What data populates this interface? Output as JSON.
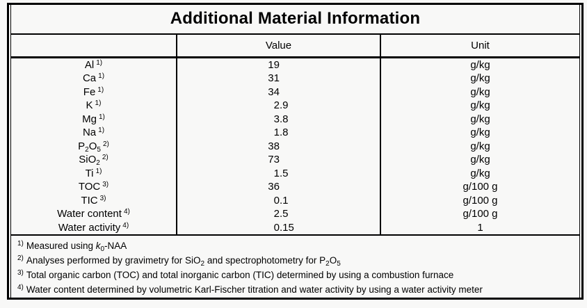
{
  "title": "Additional Material Information",
  "table": {
    "columns": [
      "",
      "Value",
      "Unit"
    ],
    "rows": [
      {
        "label_parts": [
          {
            "t": "Al"
          }
        ],
        "marker": "1)",
        "value": "19",
        "unit": "g/kg"
      },
      {
        "label_parts": [
          {
            "t": "Ca"
          }
        ],
        "marker": "1)",
        "value": "31",
        "unit": "g/kg"
      },
      {
        "label_parts": [
          {
            "t": "Fe"
          }
        ],
        "marker": "1)",
        "value": "34",
        "unit": "g/kg"
      },
      {
        "label_parts": [
          {
            "t": "K"
          }
        ],
        "marker": "1)",
        "value": "2.9",
        "unit": "g/kg"
      },
      {
        "label_parts": [
          {
            "t": "Mg"
          }
        ],
        "marker": "1)",
        "value": "3.8",
        "unit": "g/kg"
      },
      {
        "label_parts": [
          {
            "t": "Na"
          }
        ],
        "marker": "1)",
        "value": "1.8",
        "unit": "g/kg"
      },
      {
        "label_parts": [
          {
            "t": "P"
          },
          {
            "t": "2",
            "sub": true
          },
          {
            "t": "O"
          },
          {
            "t": "5",
            "sub": true
          }
        ],
        "marker": "2)",
        "value": "38",
        "unit": "g/kg"
      },
      {
        "label_parts": [
          {
            "t": "SiO"
          },
          {
            "t": "2",
            "sub": true
          }
        ],
        "marker": "2)",
        "value": "73",
        "unit": "g/kg"
      },
      {
        "label_parts": [
          {
            "t": "Ti"
          }
        ],
        "marker": "1)",
        "value": "1.5",
        "unit": "g/kg"
      },
      {
        "label_parts": [
          {
            "t": "TOC"
          }
        ],
        "marker": "3)",
        "value": "36",
        "unit": "g/100 g"
      },
      {
        "label_parts": [
          {
            "t": "TIC"
          }
        ],
        "marker": "3)",
        "value": "0.1",
        "unit": "g/100 g"
      },
      {
        "label_parts": [
          {
            "t": "Water content"
          }
        ],
        "marker": "4)",
        "value": "2.5",
        "unit": "g/100 g"
      },
      {
        "label_parts": [
          {
            "t": "Water activity"
          }
        ],
        "marker": "4)",
        "value": "0.15",
        "unit": "1"
      }
    ]
  },
  "footnotes": [
    {
      "marker": "1)",
      "parts": [
        {
          "t": "Measured using "
        },
        {
          "t": "k",
          "italic": true
        },
        {
          "t": "0",
          "sub": true
        },
        {
          "t": "-NAA"
        }
      ]
    },
    {
      "marker": "2)",
      "parts": [
        {
          "t": "Analyses performed by gravimetry for SiO"
        },
        {
          "t": "2",
          "sub": true
        },
        {
          "t": " and spectrophotometry for P"
        },
        {
          "t": "2",
          "sub": true
        },
        {
          "t": "O"
        },
        {
          "t": "5",
          "sub": true
        }
      ]
    },
    {
      "marker": "3)",
      "parts": [
        {
          "t": "Total organic carbon (TOC) and total inorganic carbon (TIC) determined by using a combustion furnace"
        }
      ]
    },
    {
      "marker": "4)",
      "parts": [
        {
          "t": "Water content determined by volumetric Karl-Fischer titration and water activity by using a water activity meter"
        }
      ]
    }
  ],
  "colors": {
    "paper": "#f8f8f7",
    "ink": "#000000"
  }
}
